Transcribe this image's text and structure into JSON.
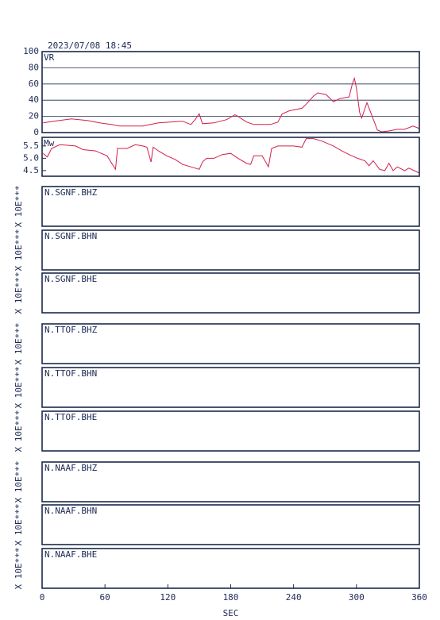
{
  "title": "2023/07/08 18:45",
  "chart_data": [
    {
      "type": "line",
      "label": "VR",
      "color": "#d21f4b",
      "x": [
        1,
        11,
        28,
        43,
        55,
        66,
        74,
        96,
        111,
        134,
        142,
        146,
        150,
        153,
        164,
        176,
        184,
        187,
        195,
        202,
        218,
        225,
        229,
        236,
        248,
        252,
        259,
        263,
        271,
        278,
        284,
        293,
        296,
        298,
        300,
        303,
        305,
        310,
        315,
        320,
        324,
        331,
        339,
        346,
        354,
        360
      ],
      "values": [
        12,
        14,
        17,
        15,
        12,
        10,
        8,
        8,
        12,
        14,
        10,
        16,
        23,
        11,
        12,
        16,
        22,
        20,
        13,
        10,
        10,
        13,
        23,
        27,
        30,
        35,
        45,
        49,
        47,
        38,
        42,
        44,
        60,
        67,
        55,
        25,
        18,
        37,
        20,
        3,
        1,
        2,
        4,
        4,
        8,
        5
      ],
      "xlim": [
        0,
        360
      ],
      "ylim": [
        0,
        100
      ],
      "yticks": [
        0,
        20,
        40,
        60,
        80,
        100
      ],
      "grid": true
    },
    {
      "type": "line",
      "label": "Mw",
      "color": "#d21f4b",
      "x": [
        1,
        5,
        9,
        17,
        32,
        39,
        51,
        62,
        70,
        72,
        81,
        89,
        96,
        100,
        104,
        106,
        111,
        119,
        127,
        134,
        142,
        150,
        153,
        157,
        164,
        172,
        180,
        187,
        195,
        199,
        202,
        210,
        216,
        219,
        225,
        240,
        248,
        252,
        259,
        267,
        278,
        286,
        293,
        301,
        308,
        312,
        316,
        322,
        327,
        331,
        335,
        339,
        346,
        350,
        360
      ],
      "values": [
        5.2,
        5.05,
        5.4,
        5.55,
        5.5,
        5.35,
        5.3,
        5.1,
        4.55,
        5.4,
        5.4,
        5.55,
        5.5,
        5.45,
        4.85,
        5.45,
        5.3,
        5.1,
        4.95,
        4.75,
        4.65,
        4.55,
        4.85,
        5.0,
        5.0,
        5.15,
        5.2,
        5.0,
        4.8,
        4.75,
        5.1,
        5.1,
        4.65,
        5.4,
        5.5,
        5.5,
        5.45,
        5.8,
        5.8,
        5.7,
        5.5,
        5.3,
        5.15,
        5.0,
        4.9,
        4.7,
        4.9,
        4.55,
        4.5,
        4.8,
        4.5,
        4.65,
        4.5,
        4.6,
        4.4
      ],
      "xlim": [
        0,
        360
      ],
      "ylim": [
        4.27,
        5.85
      ],
      "yticks": [
        4.5,
        {
          "value": 5,
          "label": "5.0"
        },
        5.5
      ],
      "grid": false
    }
  ],
  "waveform_panels": [
    {
      "label": "N.SGNF.BHZ",
      "ylabel": "X 10E***"
    },
    {
      "label": "N.SGNF.BHN",
      "ylabel": "X 10E***"
    },
    {
      "label": "N.SGNF.BHE",
      "ylabel": "X 10E***"
    },
    {
      "label": "N.TTOF.BHZ",
      "ylabel": "X 10E***"
    },
    {
      "label": "N.TTOF.BHN",
      "ylabel": "X 10E***"
    },
    {
      "label": "N.TTOF.BHE",
      "ylabel": "X 10E***"
    },
    {
      "label": "N.NAAF.BHZ",
      "ylabel": "X 10E***"
    },
    {
      "label": "N.NAAF.BHN",
      "ylabel": "X 10E***"
    },
    {
      "label": "N.NAAF.BHE",
      "ylabel": "X 10E***"
    }
  ],
  "x_axis": {
    "label": "SEC",
    "xlim": [
      0,
      360
    ],
    "xticks": [
      0,
      60,
      120,
      180,
      240,
      300,
      360
    ]
  }
}
